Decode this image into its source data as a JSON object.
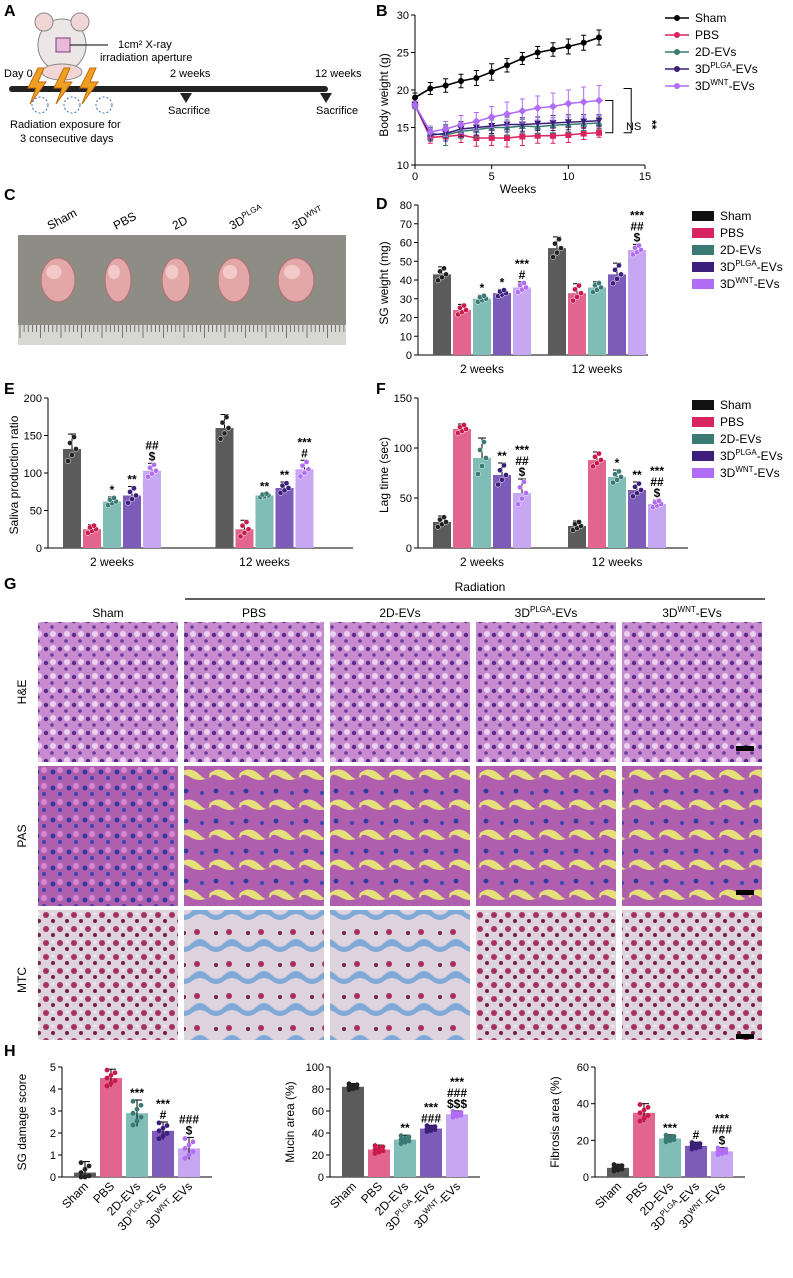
{
  "panels": {
    "A": {
      "letter": "A",
      "aperture_label": "1cm² X-ray irradiation aperture",
      "aperture_line1": "1cm² X-ray",
      "aperture_line2": "irradiation aperture",
      "day0": "Day 0",
      "week2": "2 weeks",
      "week12": "12 weeks",
      "sacrifice": "Sacrifice",
      "exposure_line1": "Radiation exposure for",
      "exposure_line2": "3 consecutive days"
    },
    "B": {
      "letter": "B",
      "ylabel": "Body weight (g)",
      "xlabel": "Weeks",
      "ns_label": "NS",
      "sig_label": "**"
    },
    "C": {
      "letter": "C",
      "labels": [
        "Sham",
        "PBS",
        "2D",
        "3D",
        "3D"
      ],
      "label_sups": [
        "",
        "",
        "",
        "PLGA",
        "WNT"
      ]
    },
    "D": {
      "letter": "D",
      "ylabel": "SG weight (mg)"
    },
    "E": {
      "letter": "E",
      "ylabel": "Saliva production ratio"
    },
    "F": {
      "letter": "F",
      "ylabel": "Lag time (sec)"
    },
    "G": {
      "letter": "G",
      "radiation": "Radiation",
      "columns": [
        "Sham",
        "PBS",
        "2D-EVs",
        "3D",
        "3D"
      ],
      "column_sups": [
        "",
        "",
        "",
        "PLGA",
        "WNT"
      ],
      "column_suffix": [
        "",
        "",
        "",
        "-EVs",
        "-EVs"
      ],
      "rows": [
        "H&E",
        "PAS",
        "MTC"
      ]
    },
    "H": {
      "letter": "H",
      "categories": [
        "Sham",
        "PBS",
        "2D-EVs",
        "3D",
        "3D"
      ],
      "category_sups": [
        "",
        "",
        "",
        "PLGA",
        "WNT"
      ],
      "category_suffix": [
        "",
        "",
        "",
        "-EVs",
        "-EVs"
      ]
    }
  },
  "legend": {
    "groups": [
      "Sham",
      "PBS",
      "2D-EVs",
      "3D",
      "3D"
    ],
    "sups": [
      "",
      "",
      "",
      "PLGA",
      "WNT"
    ],
    "suffix": [
      "",
      "",
      "",
      "-EVs",
      "-EVs"
    ]
  },
  "colors": {
    "sham": "#5b5b5b",
    "pbs": "#e2658f",
    "ev2d": "#7fbdb6",
    "plga": "#7d5bb8",
    "wnt": "#c7a6f2",
    "sham_line": "#000000",
    "pbs_line": "#d8245f",
    "ev2d_line": "#3a7a74",
    "plga_line": "#3b1f7a",
    "wnt_line": "#b16cf5"
  },
  "chart_data": [
    {
      "id": "B",
      "type": "line",
      "xlabel": "Weeks",
      "ylabel": "Body weight (g)",
      "xlim": [
        0,
        15
      ],
      "ylim": [
        10,
        30
      ],
      "xticks": [
        0,
        5,
        10,
        15
      ],
      "yticks": [
        10,
        15,
        20,
        25,
        30
      ],
      "x": [
        0,
        1,
        2,
        3,
        4,
        5,
        6,
        7,
        8,
        9,
        10,
        11,
        12
      ],
      "series": [
        {
          "name": "Sham",
          "values": [
            19,
            20.2,
            20.6,
            21.2,
            21.6,
            22.4,
            23.3,
            24.2,
            25.0,
            25.4,
            25.8,
            26.3,
            27.0
          ],
          "err": [
            0.6,
            0.8,
            0.9,
            0.9,
            1.0,
            1.1,
            0.9,
            0.8,
            0.8,
            0.9,
            1.0,
            1.0,
            1.0
          ]
        },
        {
          "name": "PBS",
          "values": [
            18,
            13.7,
            13.8,
            14.0,
            13.6,
            13.6,
            13.6,
            13.8,
            13.9,
            13.9,
            14.0,
            14.2,
            14.3
          ],
          "err": [
            0.5,
            0.8,
            1.2,
            1.0,
            1.1,
            1.0,
            1.2,
            1.2,
            1.0,
            1.0,
            1.0,
            0.8,
            0.6
          ]
        },
        {
          "name": "2D-EVs",
          "values": [
            18,
            14.2,
            14.0,
            14.5,
            14.7,
            15.0,
            15.0,
            15.2,
            15.1,
            15.3,
            15.4,
            15.5,
            15.6
          ],
          "err": [
            0.5,
            0.8,
            1.4,
            1.0,
            1.0,
            1.0,
            1.0,
            0.9,
            0.9,
            1.0,
            1.0,
            0.9,
            0.8
          ]
        },
        {
          "name": "3D-PLGA-EVs",
          "values": [
            18,
            14.0,
            14.2,
            14.8,
            15.0,
            15.2,
            15.4,
            15.4,
            15.5,
            15.6,
            15.7,
            15.8,
            15.9
          ],
          "err": [
            0.5,
            0.8,
            1.0,
            1.0,
            1.0,
            1.0,
            1.0,
            0.9,
            0.9,
            1.0,
            1.0,
            0.9,
            0.8
          ]
        },
        {
          "name": "3D-WNT-EVs",
          "values": [
            18,
            14.4,
            14.8,
            15.4,
            15.8,
            16.4,
            16.8,
            17.2,
            17.6,
            17.8,
            18.2,
            18.4,
            18.6
          ],
          "err": [
            0.5,
            0.8,
            1.0,
            1.2,
            1.2,
            1.4,
            1.6,
            1.6,
            1.6,
            1.8,
            1.8,
            2.0,
            2.0
          ]
        }
      ]
    },
    {
      "id": "D",
      "type": "bar",
      "ylabel": "SG weight (mg)",
      "ylim": [
        0,
        80
      ],
      "yticks": [
        0,
        10,
        20,
        30,
        40,
        50,
        60,
        70,
        80
      ],
      "categories": [
        "2 weeks",
        "12 weeks"
      ],
      "series": [
        {
          "name": "Sham",
          "values": [
            43,
            57
          ],
          "err": [
            4,
            6
          ],
          "sig": [
            "",
            ""
          ]
        },
        {
          "name": "PBS",
          "values": [
            24,
            33
          ],
          "err": [
            3,
            5
          ],
          "sig": [
            "",
            ""
          ]
        },
        {
          "name": "2D-EVs",
          "values": [
            30,
            36
          ],
          "err": [
            2,
            3
          ],
          "sig": [
            "*",
            ""
          ]
        },
        {
          "name": "3D-PLGA-EVs",
          "values": [
            33,
            43
          ],
          "err": [
            2,
            6
          ],
          "sig": [
            "*",
            ""
          ]
        },
        {
          "name": "3D-WNT-EVs",
          "values": [
            36,
            56
          ],
          "err": [
            3,
            3
          ],
          "sig": [
            "***\n#",
            "***\n##\n$"
          ]
        }
      ]
    },
    {
      "id": "E",
      "type": "bar",
      "ylabel": "Saliva production ratio",
      "ylim": [
        0,
        200
      ],
      "yticks": [
        0,
        50,
        100,
        150,
        200
      ],
      "categories": [
        "2 weeks",
        "12 weeks"
      ],
      "series": [
        {
          "name": "Sham",
          "values": [
            132,
            160
          ],
          "err": [
            20,
            18
          ],
          "sig": [
            "",
            ""
          ]
        },
        {
          "name": "PBS",
          "values": [
            25,
            25
          ],
          "err": [
            6,
            12
          ],
          "sig": [
            "",
            ""
          ]
        },
        {
          "name": "2D-EVs",
          "values": [
            62,
            70
          ],
          "err": [
            6,
            3
          ],
          "sig": [
            "*",
            "**"
          ]
        },
        {
          "name": "3D-PLGA-EVs",
          "values": [
            70,
            80
          ],
          "err": [
            12,
            8
          ],
          "sig": [
            "**",
            "**"
          ]
        },
        {
          "name": "3D-WNT-EVs",
          "values": [
            103,
            105
          ],
          "err": [
            10,
            12
          ],
          "sig": [
            "##\n$",
            "***\n#"
          ]
        }
      ]
    },
    {
      "id": "F",
      "type": "bar",
      "ylabel": "Lag time (sec)",
      "ylim": [
        0,
        150
      ],
      "yticks": [
        0,
        50,
        100,
        150
      ],
      "categories": [
        "2 weeks",
        "12 weeks"
      ],
      "series": [
        {
          "name": "Sham",
          "values": [
            26,
            22
          ],
          "err": [
            6,
            5
          ],
          "sig": [
            "",
            ""
          ]
        },
        {
          "name": "PBS",
          "values": [
            119,
            88
          ],
          "err": [
            5,
            8
          ],
          "sig": [
            "",
            ""
          ]
        },
        {
          "name": "2D-EVs",
          "values": [
            90,
            71
          ],
          "err": [
            20,
            7
          ],
          "sig": [
            "",
            "*"
          ]
        },
        {
          "name": "3D-PLGA-EVs",
          "values": [
            73,
            58
          ],
          "err": [
            12,
            8
          ],
          "sig": [
            "**",
            "**"
          ]
        },
        {
          "name": "3D-WNT-EVs",
          "values": [
            55,
            44
          ],
          "err": [
            14,
            4
          ],
          "sig": [
            "***\n##\n$",
            "***\n##\n$"
          ]
        }
      ]
    },
    {
      "id": "H1",
      "type": "bar",
      "ylabel": "SG damage score",
      "ylim": [
        0,
        5
      ],
      "yticks": [
        0,
        1,
        2,
        3,
        4,
        5
      ],
      "categories": [
        "Sham",
        "PBS",
        "2D-EVs",
        "3D-PLGA-EVs",
        "3D-WNT-EVs"
      ],
      "values": [
        0.2,
        4.5,
        2.9,
        2.1,
        1.3
      ],
      "err": [
        0.5,
        0.4,
        0.6,
        0.4,
        0.5
      ],
      "sig": [
        "",
        "",
        "***",
        "***\n#",
        "###\n$"
      ]
    },
    {
      "id": "H2",
      "type": "bar",
      "ylabel": "Mucin area (%)",
      "ylim": [
        0,
        100
      ],
      "yticks": [
        0,
        20,
        40,
        60,
        80,
        100
      ],
      "categories": [
        "Sham",
        "PBS",
        "2D-EVs",
        "3D-PLGA-EVs",
        "3D-WNT-EVs"
      ],
      "values": [
        82,
        25,
        34,
        44,
        57
      ],
      "err": [
        3,
        4,
        4,
        3,
        3
      ],
      "sig": [
        "",
        "",
        "**",
        "***\n###",
        "***\n###\n$$$"
      ]
    },
    {
      "id": "H3",
      "type": "bar",
      "ylabel": "Fibrosis area (%)",
      "ylim": [
        0,
        60
      ],
      "yticks": [
        0,
        20,
        40,
        60
      ],
      "categories": [
        "Sham",
        "PBS",
        "2D-EVs",
        "3D-PLGA-EVs",
        "3D-WNT-EVs"
      ],
      "values": [
        5,
        35,
        21,
        17,
        14
      ],
      "err": [
        2,
        5,
        2,
        2,
        2
      ],
      "sig": [
        "",
        "",
        "***",
        "#",
        "***\n###\n$"
      ]
    }
  ]
}
